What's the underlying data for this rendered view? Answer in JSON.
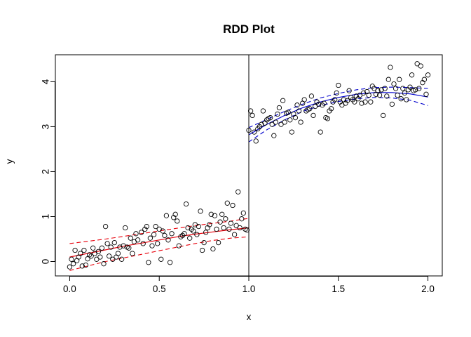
{
  "chart_data": {
    "type": "scatter",
    "title": "RDD Plot",
    "xlabel": "x",
    "ylabel": "y",
    "xlim": [
      -0.08,
      2.08
    ],
    "ylim": [
      -0.32,
      4.6
    ],
    "xticks": [
      0.0,
      0.5,
      1.0,
      1.5,
      2.0
    ],
    "xtick_labels": [
      "0.0",
      "0.5",
      "1.0",
      "1.5",
      "2.0"
    ],
    "yticks": [
      0,
      1,
      2,
      3,
      4
    ],
    "ytick_labels": [
      "0",
      "1",
      "2",
      "3",
      "4"
    ],
    "grid": false,
    "legend": "none",
    "cutoff": 1.0,
    "colors": {
      "left_fit": "#e8000b",
      "right_fit": "#0000cc",
      "points": "#000000",
      "cutoff_line": "#000000"
    },
    "points": [
      [
        0.0,
        -0.12
      ],
      [
        0.01,
        0.05
      ],
      [
        0.02,
        -0.05
      ],
      [
        0.03,
        0.25
      ],
      [
        0.04,
        0.02
      ],
      [
        0.05,
        0.1
      ],
      [
        0.06,
        0.18
      ],
      [
        0.07,
        -0.1
      ],
      [
        0.08,
        0.25
      ],
      [
        0.09,
        -0.08
      ],
      [
        0.1,
        0.06
      ],
      [
        0.11,
        0.15
      ],
      [
        0.12,
        0.12
      ],
      [
        0.13,
        0.3
      ],
      [
        0.14,
        0.18
      ],
      [
        0.15,
        0.05
      ],
      [
        0.16,
        0.22
      ],
      [
        0.17,
        0.1
      ],
      [
        0.18,
        0.3
      ],
      [
        0.19,
        -0.05
      ],
      [
        0.2,
        0.78
      ],
      [
        0.21,
        0.4
      ],
      [
        0.22,
        0.12
      ],
      [
        0.23,
        0.32
      ],
      [
        0.24,
        0.05
      ],
      [
        0.25,
        0.42
      ],
      [
        0.26,
        0.1
      ],
      [
        0.27,
        0.18
      ],
      [
        0.28,
        0.32
      ],
      [
        0.29,
        0.05
      ],
      [
        0.3,
        0.35
      ],
      [
        0.31,
        0.75
      ],
      [
        0.32,
        0.32
      ],
      [
        0.33,
        0.3
      ],
      [
        0.34,
        0.52
      ],
      [
        0.35,
        0.18
      ],
      [
        0.36,
        0.44
      ],
      [
        0.37,
        0.62
      ],
      [
        0.38,
        0.48
      ],
      [
        0.4,
        0.65
      ],
      [
        0.41,
        0.4
      ],
      [
        0.42,
        0.72
      ],
      [
        0.43,
        0.78
      ],
      [
        0.44,
        -0.02
      ],
      [
        0.45,
        0.52
      ],
      [
        0.46,
        0.35
      ],
      [
        0.47,
        0.6
      ],
      [
        0.48,
        0.78
      ],
      [
        0.49,
        0.4
      ],
      [
        0.5,
        0.72
      ],
      [
        0.51,
        0.05
      ],
      [
        0.52,
        0.68
      ],
      [
        0.53,
        0.58
      ],
      [
        0.54,
        1.02
      ],
      [
        0.55,
        0.48
      ],
      [
        0.56,
        -0.02
      ],
      [
        0.57,
        0.62
      ],
      [
        0.58,
        0.98
      ],
      [
        0.59,
        1.05
      ],
      [
        0.6,
        0.9
      ],
      [
        0.61,
        0.35
      ],
      [
        0.62,
        0.55
      ],
      [
        0.63,
        0.58
      ],
      [
        0.64,
        0.62
      ],
      [
        0.65,
        1.28
      ],
      [
        0.66,
        0.75
      ],
      [
        0.67,
        0.52
      ],
      [
        0.68,
        0.72
      ],
      [
        0.69,
        0.68
      ],
      [
        0.7,
        0.82
      ],
      [
        0.71,
        0.6
      ],
      [
        0.72,
        0.78
      ],
      [
        0.73,
        1.12
      ],
      [
        0.74,
        0.25
      ],
      [
        0.75,
        0.42
      ],
      [
        0.76,
        0.65
      ],
      [
        0.77,
        0.75
      ],
      [
        0.78,
        0.82
      ],
      [
        0.79,
        1.05
      ],
      [
        0.8,
        0.28
      ],
      [
        0.81,
        1.02
      ],
      [
        0.82,
        0.72
      ],
      [
        0.83,
        0.42
      ],
      [
        0.84,
        0.88
      ],
      [
        0.85,
        1.05
      ],
      [
        0.86,
        0.75
      ],
      [
        0.87,
        0.95
      ],
      [
        0.88,
        1.3
      ],
      [
        0.89,
        0.72
      ],
      [
        0.9,
        0.85
      ],
      [
        0.91,
        1.25
      ],
      [
        0.92,
        0.6
      ],
      [
        0.93,
        0.8
      ],
      [
        0.94,
        1.55
      ],
      [
        0.95,
        0.75
      ],
      [
        0.96,
        0.95
      ],
      [
        0.97,
        1.08
      ],
      [
        0.98,
        0.72
      ],
      [
        0.99,
        0.7
      ],
      [
        1.0,
        2.92
      ],
      [
        1.01,
        3.35
      ],
      [
        1.02,
        3.25
      ],
      [
        1.03,
        2.88
      ],
      [
        1.04,
        2.68
      ],
      [
        1.05,
        2.95
      ],
      [
        1.06,
        3.0
      ],
      [
        1.07,
        3.05
      ],
      [
        1.08,
        3.35
      ],
      [
        1.09,
        3.08
      ],
      [
        1.1,
        3.15
      ],
      [
        1.11,
        3.18
      ],
      [
        1.12,
        3.2
      ],
      [
        1.13,
        3.05
      ],
      [
        1.14,
        2.8
      ],
      [
        1.15,
        3.1
      ],
      [
        1.16,
        3.28
      ],
      [
        1.17,
        3.42
      ],
      [
        1.18,
        3.05
      ],
      [
        1.19,
        3.58
      ],
      [
        1.2,
        3.1
      ],
      [
        1.21,
        3.3
      ],
      [
        1.22,
        3.32
      ],
      [
        1.23,
        3.15
      ],
      [
        1.24,
        2.88
      ],
      [
        1.25,
        3.28
      ],
      [
        1.26,
        3.2
      ],
      [
        1.27,
        3.48
      ],
      [
        1.28,
        3.35
      ],
      [
        1.29,
        3.1
      ],
      [
        1.3,
        3.52
      ],
      [
        1.31,
        3.6
      ],
      [
        1.32,
        3.35
      ],
      [
        1.33,
        3.38
      ],
      [
        1.34,
        3.4
      ],
      [
        1.35,
        3.68
      ],
      [
        1.36,
        3.25
      ],
      [
        1.37,
        3.45
      ],
      [
        1.38,
        3.55
      ],
      [
        1.39,
        3.5
      ],
      [
        1.4,
        2.88
      ],
      [
        1.41,
        3.48
      ],
      [
        1.42,
        3.52
      ],
      [
        1.43,
        3.2
      ],
      [
        1.44,
        3.18
      ],
      [
        1.45,
        3.35
      ],
      [
        1.46,
        3.4
      ],
      [
        1.47,
        3.55
      ],
      [
        1.48,
        3.6
      ],
      [
        1.49,
        3.75
      ],
      [
        1.5,
        3.92
      ],
      [
        1.51,
        3.55
      ],
      [
        1.52,
        3.48
      ],
      [
        1.53,
        3.6
      ],
      [
        1.54,
        3.52
      ],
      [
        1.55,
        3.58
      ],
      [
        1.56,
        3.8
      ],
      [
        1.57,
        3.65
      ],
      [
        1.58,
        3.6
      ],
      [
        1.59,
        3.55
      ],
      [
        1.6,
        3.68
      ],
      [
        1.61,
        3.62
      ],
      [
        1.62,
        3.7
      ],
      [
        1.63,
        3.52
      ],
      [
        1.64,
        3.75
      ],
      [
        1.65,
        3.55
      ],
      [
        1.66,
        3.78
      ],
      [
        1.67,
        3.7
      ],
      [
        1.68,
        3.55
      ],
      [
        1.69,
        3.9
      ],
      [
        1.7,
        3.85
      ],
      [
        1.71,
        3.72
      ],
      [
        1.72,
        3.8
      ],
      [
        1.73,
        3.7
      ],
      [
        1.74,
        3.82
      ],
      [
        1.75,
        3.25
      ],
      [
        1.76,
        3.85
      ],
      [
        1.77,
        3.68
      ],
      [
        1.78,
        4.05
      ],
      [
        1.79,
        4.32
      ],
      [
        1.8,
        3.5
      ],
      [
        1.81,
        3.95
      ],
      [
        1.82,
        3.85
      ],
      [
        1.83,
        3.7
      ],
      [
        1.84,
        4.05
      ],
      [
        1.85,
        3.62
      ],
      [
        1.86,
        3.85
      ],
      [
        1.87,
        3.75
      ],
      [
        1.88,
        3.6
      ],
      [
        1.89,
        3.82
      ],
      [
        1.9,
        3.88
      ],
      [
        1.91,
        4.15
      ],
      [
        1.92,
        3.8
      ],
      [
        1.93,
        3.82
      ],
      [
        1.94,
        4.4
      ],
      [
        1.95,
        3.85
      ],
      [
        1.96,
        4.35
      ],
      [
        1.97,
        3.98
      ],
      [
        1.98,
        4.05
      ],
      [
        1.99,
        3.72
      ],
      [
        2.0,
        4.15
      ]
    ],
    "fits": [
      {
        "side": "left",
        "x": [
          0.0,
          0.1,
          0.2,
          0.3,
          0.4,
          0.5,
          0.6,
          0.7,
          0.8,
          0.9,
          1.0
        ],
        "fit": [
          0.1,
          0.18,
          0.26,
          0.34,
          0.41,
          0.48,
          0.55,
          0.61,
          0.66,
          0.71,
          0.75
        ],
        "upper": [
          0.4,
          0.45,
          0.5,
          0.56,
          0.62,
          0.68,
          0.74,
          0.8,
          0.85,
          0.9,
          0.96
        ],
        "lower": [
          -0.2,
          -0.1,
          0.0,
          0.08,
          0.16,
          0.24,
          0.32,
          0.4,
          0.47,
          0.52,
          0.55
        ]
      },
      {
        "side": "right",
        "x": [
          1.0,
          1.1,
          1.2,
          1.3,
          1.4,
          1.5,
          1.6,
          1.7,
          1.8,
          1.9,
          2.0
        ],
        "fit": [
          2.82,
          3.05,
          3.25,
          3.42,
          3.55,
          3.65,
          3.72,
          3.76,
          3.76,
          3.73,
          3.66
        ],
        "upper": [
          2.98,
          3.16,
          3.34,
          3.5,
          3.64,
          3.74,
          3.82,
          3.87,
          3.88,
          3.87,
          3.85
        ],
        "lower": [
          2.66,
          2.93,
          3.15,
          3.34,
          3.47,
          3.56,
          3.62,
          3.65,
          3.64,
          3.59,
          3.47
        ]
      }
    ]
  }
}
